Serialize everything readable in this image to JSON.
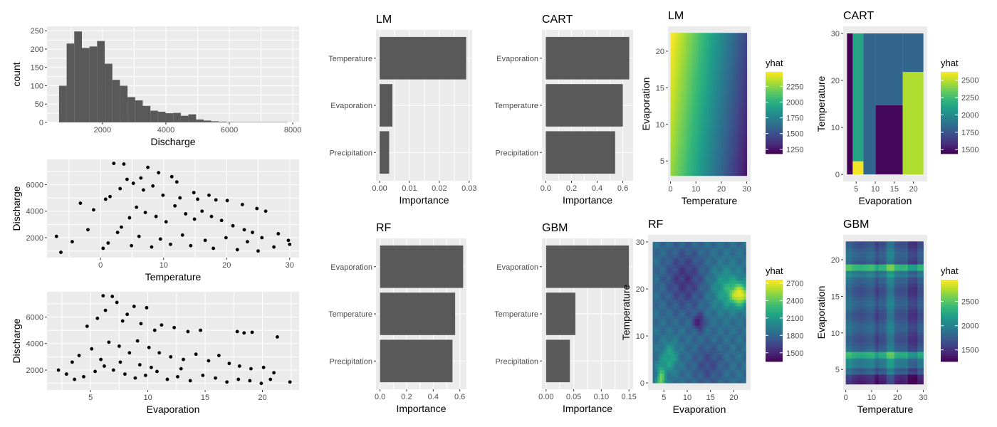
{
  "colors": {
    "panel_bg": "#EBEBEB",
    "grid": "#FFFFFF",
    "bar_fill": "#595959",
    "point": "#000000",
    "viridis": [
      "#440154",
      "#482878",
      "#3E4A89",
      "#31688E",
      "#26828E",
      "#1F9E89",
      "#35B779",
      "#6DCD59",
      "#B4DE2C",
      "#FDE725"
    ]
  },
  "chart_data": [
    {
      "id": "hist",
      "type": "bar",
      "subtype": "histogram",
      "title": "",
      "xlabel": "Discharge",
      "ylabel": "count",
      "xlim": [
        250,
        8200
      ],
      "ylim": [
        0,
        262
      ],
      "xticks": [
        2000,
        4000,
        6000,
        8000
      ],
      "yticks": [
        0,
        50,
        100,
        150,
        200,
        250
      ],
      "bin_width": 240,
      "bins": [
        {
          "x0": 630,
          "x1": 870,
          "count": 100
        },
        {
          "x0": 870,
          "x1": 1110,
          "count": 215
        },
        {
          "x0": 1110,
          "x1": 1350,
          "count": 248
        },
        {
          "x0": 1350,
          "x1": 1590,
          "count": 203
        },
        {
          "x0": 1590,
          "x1": 1830,
          "count": 207
        },
        {
          "x0": 1830,
          "x1": 2070,
          "count": 222
        },
        {
          "x0": 2070,
          "x1": 2310,
          "count": 160
        },
        {
          "x0": 2310,
          "x1": 2550,
          "count": 116
        },
        {
          "x0": 2550,
          "x1": 2790,
          "count": 100
        },
        {
          "x0": 2790,
          "x1": 3030,
          "count": 69
        },
        {
          "x0": 3030,
          "x1": 3270,
          "count": 60
        },
        {
          "x0": 3270,
          "x1": 3510,
          "count": 45
        },
        {
          "x0": 3510,
          "x1": 3750,
          "count": 32
        },
        {
          "x0": 3750,
          "x1": 3990,
          "count": 29
        },
        {
          "x0": 3990,
          "x1": 4230,
          "count": 25
        },
        {
          "x0": 4230,
          "x1": 4470,
          "count": 26
        },
        {
          "x0": 4470,
          "x1": 4710,
          "count": 18
        },
        {
          "x0": 4710,
          "x1": 4950,
          "count": 22
        },
        {
          "x0": 4950,
          "x1": 5190,
          "count": 8
        },
        {
          "x0": 5190,
          "x1": 5430,
          "count": 5
        },
        {
          "x0": 5430,
          "x1": 5670,
          "count": 3
        },
        {
          "x0": 5670,
          "x1": 5910,
          "count": 2
        },
        {
          "x0": 5910,
          "x1": 6150,
          "count": 1
        },
        {
          "x0": 6150,
          "x1": 6390,
          "count": 1
        },
        {
          "x0": 6390,
          "x1": 6630,
          "count": 1
        },
        {
          "x0": 6630,
          "x1": 6870,
          "count": 1
        },
        {
          "x0": 6870,
          "x1": 7110,
          "count": 1
        },
        {
          "x0": 7110,
          "x1": 7350,
          "count": 1
        },
        {
          "x0": 7350,
          "x1": 7590,
          "count": 1
        },
        {
          "x0": 7590,
          "x1": 7830,
          "count": 1
        }
      ]
    },
    {
      "id": "scatter_temp",
      "type": "scatter",
      "title": "",
      "xlabel": "Temperature",
      "ylabel": "Discharge",
      "xlim": [
        -8.5,
        31.5
      ],
      "ylim": [
        500,
        7900
      ],
      "xticks": [
        0,
        10,
        20,
        30
      ],
      "yticks": [
        2000,
        4000,
        6000
      ],
      "points": [
        [
          2.1,
          7600
        ],
        [
          3.7,
          7550
        ],
        [
          7.5,
          7300
        ],
        [
          9.2,
          6900
        ],
        [
          6.4,
          6500
        ],
        [
          4.2,
          6400
        ],
        [
          11.3,
          6600
        ],
        [
          12.1,
          6200
        ],
        [
          5.2,
          6100
        ],
        [
          8.3,
          5900
        ],
        [
          3.1,
          5700
        ],
        [
          14.8,
          5400
        ],
        [
          17.2,
          5200
        ],
        [
          -3.2,
          4600
        ],
        [
          -1.1,
          4100
        ],
        [
          0.8,
          4900
        ],
        [
          1.5,
          5100
        ],
        [
          6.8,
          5600
        ],
        [
          9.9,
          5200
        ],
        [
          12.6,
          5000
        ],
        [
          15.4,
          4900
        ],
        [
          18.3,
          4850
        ],
        [
          20.1,
          4800
        ],
        [
          22.5,
          4500
        ],
        [
          24.8,
          4200
        ],
        [
          26.2,
          4000
        ],
        [
          -7.0,
          2100
        ],
        [
          -4.5,
          1700
        ],
        [
          -2.0,
          2600
        ],
        [
          29.8,
          1800
        ],
        [
          28.2,
          2300
        ],
        [
          27.5,
          1300
        ],
        [
          30.0,
          1500
        ],
        [
          -6.3,
          900
        ],
        [
          0.4,
          1200
        ],
        [
          3.3,
          2800
        ],
        [
          4.6,
          3500
        ],
        [
          5.7,
          4300
        ],
        [
          7.1,
          3900
        ],
        [
          8.8,
          3600
        ],
        [
          10.4,
          3200
        ],
        [
          11.8,
          4400
        ],
        [
          13.5,
          3800
        ],
        [
          14.9,
          3400
        ],
        [
          16.1,
          4000
        ],
        [
          17.6,
          3600
        ],
        [
          19.2,
          3300
        ],
        [
          21.0,
          2900
        ],
        [
          22.8,
          2600
        ],
        [
          24.1,
          2400
        ],
        [
          25.6,
          2000
        ],
        [
          2.7,
          2400
        ],
        [
          6.1,
          2100
        ],
        [
          9.5,
          1900
        ],
        [
          13.0,
          2200
        ],
        [
          16.6,
          1800
        ],
        [
          19.9,
          2000
        ],
        [
          23.3,
          1700
        ],
        [
          1.2,
          1600
        ],
        [
          4.9,
          1400
        ],
        [
          8.1,
          1300
        ],
        [
          11.1,
          1500
        ],
        [
          14.3,
          1400
        ],
        [
          17.9,
          1200
        ],
        [
          21.7,
          1100
        ],
        [
          25.0,
          1000
        ]
      ]
    },
    {
      "id": "scatter_evap",
      "type": "scatter",
      "title": "",
      "xlabel": "Evaporation",
      "ylabel": "Discharge",
      "xlim": [
        1.2,
        23.2
      ],
      "ylim": [
        500,
        7900
      ],
      "xticks": [
        5,
        10,
        15,
        20
      ],
      "yticks": [
        2000,
        4000,
        6000
      ],
      "points": [
        [
          6.1,
          7600
        ],
        [
          6.9,
          7550
        ],
        [
          7.3,
          7100
        ],
        [
          8.8,
          6800
        ],
        [
          9.9,
          6700
        ],
        [
          6.3,
          6500
        ],
        [
          8.2,
          6200
        ],
        [
          5.6,
          5900
        ],
        [
          7.8,
          5700
        ],
        [
          9.4,
          5500
        ],
        [
          4.7,
          5300
        ],
        [
          11.2,
          5400
        ],
        [
          12.3,
          5200
        ],
        [
          10.6,
          5000
        ],
        [
          13.5,
          4900
        ],
        [
          14.6,
          5000
        ],
        [
          17.8,
          4900
        ],
        [
          18.4,
          4800
        ],
        [
          19.1,
          4850
        ],
        [
          21.3,
          4500
        ],
        [
          22.4,
          1100
        ],
        [
          2.2,
          2000
        ],
        [
          2.9,
          1700
        ],
        [
          3.4,
          2600
        ],
        [
          4.0,
          3100
        ],
        [
          5.1,
          3600
        ],
        [
          6.6,
          4100
        ],
        [
          7.5,
          3800
        ],
        [
          8.4,
          3300
        ],
        [
          9.1,
          4200
        ],
        [
          10.1,
          3700
        ],
        [
          11.0,
          3300
        ],
        [
          12.0,
          3000
        ],
        [
          13.1,
          2800
        ],
        [
          14.2,
          3200
        ],
        [
          15.3,
          2700
        ],
        [
          16.2,
          3100
        ],
        [
          17.1,
          2500
        ],
        [
          18.0,
          2300
        ],
        [
          19.0,
          2100
        ],
        [
          20.1,
          2200
        ],
        [
          21.0,
          1800
        ],
        [
          3.6,
          1300
        ],
        [
          4.4,
          1500
        ],
        [
          5.4,
          1900
        ],
        [
          6.2,
          2300
        ],
        [
          7.0,
          2000
        ],
        [
          8.0,
          1700
        ],
        [
          8.9,
          1400
        ],
        [
          9.8,
          1600
        ],
        [
          10.8,
          1900
        ],
        [
          11.7,
          1300
        ],
        [
          12.6,
          1500
        ],
        [
          13.7,
          1200
        ],
        [
          14.8,
          1600
        ],
        [
          15.9,
          1400
        ],
        [
          16.9,
          1100
        ],
        [
          17.9,
          1300
        ],
        [
          18.9,
          1200
        ],
        [
          19.9,
          1000
        ],
        [
          20.7,
          1300
        ],
        [
          5.9,
          2800
        ],
        [
          7.6,
          2600
        ],
        [
          9.3,
          2400
        ],
        [
          10.3,
          2200
        ],
        [
          12.9,
          2100
        ]
      ]
    },
    {
      "id": "imp_lm",
      "type": "bar",
      "orientation": "horizontal",
      "title": "LM",
      "xlabel": "Importance",
      "ylabel": "",
      "categories": [
        "Temperature",
        "Evaporation",
        "Precipitation"
      ],
      "values": [
        0.029,
        0.0043,
        0.0032
      ],
      "xlim": [
        -0.0012,
        0.031
      ],
      "xticks": [
        0,
        0.01,
        0.02,
        0.03
      ],
      "xtick_labels": [
        "0.00",
        "0.01",
        "0.02",
        "0.03"
      ]
    },
    {
      "id": "imp_cart",
      "type": "bar",
      "orientation": "horizontal",
      "title": "CART",
      "xlabel": "Importance",
      "ylabel": "",
      "categories": [
        "Evaporation",
        "Temperature",
        "Precipitation"
      ],
      "values": [
        0.65,
        0.6,
        0.54
      ],
      "xlim": [
        -0.03,
        0.68
      ],
      "xticks": [
        0,
        0.2,
        0.4,
        0.6
      ],
      "xtick_labels": [
        "0.0",
        "0.2",
        "0.4",
        "0.6"
      ]
    },
    {
      "id": "imp_rf",
      "type": "bar",
      "orientation": "horizontal",
      "title": "RF",
      "xlabel": "Importance",
      "ylabel": "",
      "categories": [
        "Evaporation",
        "Temperature",
        "Precipitation"
      ],
      "values": [
        0.625,
        0.565,
        0.545
      ],
      "xlim": [
        -0.03,
        0.65
      ],
      "xticks": [
        0,
        0.2,
        0.4,
        0.6
      ],
      "xtick_labels": [
        "0.0",
        "0.2",
        "0.4",
        "0.6"
      ]
    },
    {
      "id": "imp_gbm",
      "type": "bar",
      "orientation": "horizontal",
      "title": "GBM",
      "xlabel": "Importance",
      "ylabel": "",
      "categories": [
        "Evaporation",
        "Temperature",
        "Precipitation"
      ],
      "values": [
        0.15,
        0.053,
        0.043
      ],
      "xlim": [
        -0.0075,
        0.1575
      ],
      "xticks": [
        0,
        0.05,
        0.1,
        0.15
      ],
      "xtick_labels": [
        "0.00",
        "0.05",
        "0.10",
        "0.15"
      ]
    },
    {
      "id": "pd_lm",
      "type": "heatmap",
      "title": "LM",
      "xlabel": "Temperature",
      "ylabel": "Evaporation",
      "xlim": [
        -1,
        31.5
      ],
      "ylim": [
        2.2,
        23.4
      ],
      "xticks": [
        0,
        10,
        20,
        30
      ],
      "yticks": [
        5,
        10,
        15,
        20
      ],
      "x_range": [
        0,
        30
      ],
      "y_range": [
        3,
        22.5
      ],
      "model": "linear",
      "z_corners": {
        "x0y0": 2280,
        "x1y0": 1250,
        "x0y1": 2500,
        "x1y1": 1450
      },
      "legend_title": "yhat",
      "zlim": [
        1180,
        2480
      ],
      "legend_ticks": [
        1250,
        1500,
        1750,
        2000,
        2250
      ]
    },
    {
      "id": "pd_cart",
      "type": "heatmap",
      "title": "CART",
      "xlabel": "Evaporation",
      "ylabel": "Temperature",
      "xlim": [
        1.6,
        23.6
      ],
      "ylim": [
        -1.5,
        31.5
      ],
      "xticks": [
        5,
        10,
        15,
        20
      ],
      "yticks": [
        0,
        10,
        20,
        30
      ],
      "x_range": [
        2.6,
        22.6
      ],
      "y_range": [
        0,
        30
      ],
      "model": "rects",
      "rects": [
        {
          "x0": 2.6,
          "x1": 4.1,
          "y0": 0,
          "y1": 30,
          "z": 1440
        },
        {
          "x0": 4.1,
          "x1": 6.9,
          "y0": 0,
          "y1": 2.8,
          "z": 2600
        },
        {
          "x0": 4.1,
          "x1": 6.9,
          "y0": 2.8,
          "y1": 30,
          "z": 2130
        },
        {
          "x0": 6.9,
          "x1": 10.1,
          "y0": 0,
          "y1": 30,
          "z": 1820
        },
        {
          "x0": 10.1,
          "x1": 17.2,
          "y0": 0,
          "y1": 14.7,
          "z": 1460
        },
        {
          "x0": 10.1,
          "x1": 17.2,
          "y0": 14.7,
          "y1": 30,
          "z": 1820
        },
        {
          "x0": 17.2,
          "x1": 22.6,
          "y0": 0,
          "y1": 21.8,
          "z": 2480
        },
        {
          "x0": 17.2,
          "x1": 22.6,
          "y0": 21.8,
          "y1": 30,
          "z": 1820
        }
      ],
      "legend_title": "yhat",
      "zlim": [
        1440,
        2620
      ],
      "legend_ticks": [
        1500,
        1750,
        2000,
        2250,
        2500
      ]
    },
    {
      "id": "pd_rf",
      "type": "heatmap",
      "title": "RF",
      "xlabel": "Evaporation",
      "ylabel": "Temperature",
      "xlim": [
        1.6,
        23.6
      ],
      "ylim": [
        -1.5,
        31.5
      ],
      "xticks": [
        5,
        10,
        15,
        20
      ],
      "yticks": [
        0,
        10,
        20,
        30
      ],
      "x_range": [
        2.6,
        22.6
      ],
      "y_range": [
        0,
        30
      ],
      "model": "rf",
      "legend_title": "yhat",
      "zlim": [
        1350,
        2760
      ],
      "legend_ticks": [
        1500,
        1800,
        2100,
        2400,
        2700
      ]
    },
    {
      "id": "pd_gbm",
      "type": "heatmap",
      "title": "GBM",
      "xlabel": "Temperature",
      "ylabel": "Evaporation",
      "xlim": [
        -1,
        31.5
      ],
      "ylim": [
        2.2,
        23.4
      ],
      "xticks": [
        0,
        10,
        20,
        30
      ],
      "yticks": [
        5,
        10,
        15,
        20
      ],
      "x_range": [
        0,
        30
      ],
      "y_range": [
        3,
        22.5
      ],
      "model": "gbm",
      "legend_title": "yhat",
      "zlim": [
        1260,
        2950
      ],
      "legend_ticks": [
        1500,
        2000,
        2500
      ]
    }
  ]
}
